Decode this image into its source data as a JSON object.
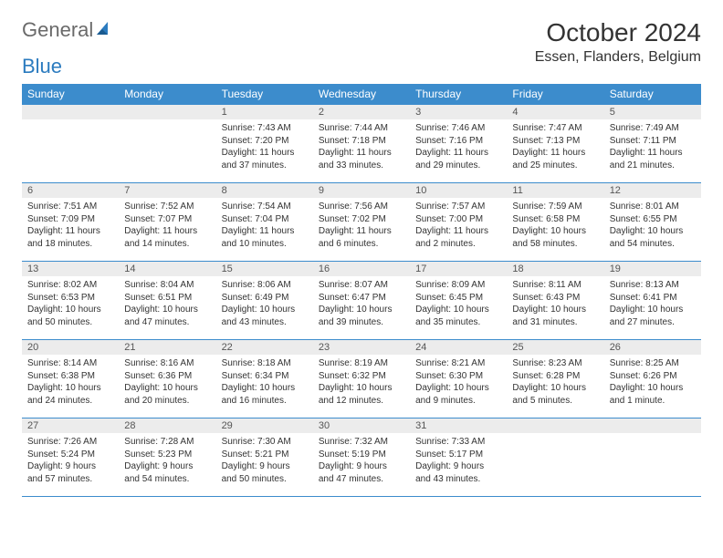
{
  "logo": {
    "text1": "General",
    "text2": "Blue"
  },
  "header": {
    "month_title": "October 2024",
    "location": "Essen, Flanders, Belgium"
  },
  "colors": {
    "header_bg": "#3c8ccc",
    "daynum_bg": "#ececec",
    "border": "#3c8ccc",
    "logo_gray": "#6a6a6a",
    "logo_blue": "#2b7bbf"
  },
  "day_names": [
    "Sunday",
    "Monday",
    "Tuesday",
    "Wednesday",
    "Thursday",
    "Friday",
    "Saturday"
  ],
  "weeks": [
    [
      {
        "empty": true
      },
      {
        "empty": true
      },
      {
        "num": "1",
        "sunrise": "Sunrise: 7:43 AM",
        "sunset": "Sunset: 7:20 PM",
        "daylight": "Daylight: 11 hours and 37 minutes."
      },
      {
        "num": "2",
        "sunrise": "Sunrise: 7:44 AM",
        "sunset": "Sunset: 7:18 PM",
        "daylight": "Daylight: 11 hours and 33 minutes."
      },
      {
        "num": "3",
        "sunrise": "Sunrise: 7:46 AM",
        "sunset": "Sunset: 7:16 PM",
        "daylight": "Daylight: 11 hours and 29 minutes."
      },
      {
        "num": "4",
        "sunrise": "Sunrise: 7:47 AM",
        "sunset": "Sunset: 7:13 PM",
        "daylight": "Daylight: 11 hours and 25 minutes."
      },
      {
        "num": "5",
        "sunrise": "Sunrise: 7:49 AM",
        "sunset": "Sunset: 7:11 PM",
        "daylight": "Daylight: 11 hours and 21 minutes."
      }
    ],
    [
      {
        "num": "6",
        "sunrise": "Sunrise: 7:51 AM",
        "sunset": "Sunset: 7:09 PM",
        "daylight": "Daylight: 11 hours and 18 minutes."
      },
      {
        "num": "7",
        "sunrise": "Sunrise: 7:52 AM",
        "sunset": "Sunset: 7:07 PM",
        "daylight": "Daylight: 11 hours and 14 minutes."
      },
      {
        "num": "8",
        "sunrise": "Sunrise: 7:54 AM",
        "sunset": "Sunset: 7:04 PM",
        "daylight": "Daylight: 11 hours and 10 minutes."
      },
      {
        "num": "9",
        "sunrise": "Sunrise: 7:56 AM",
        "sunset": "Sunset: 7:02 PM",
        "daylight": "Daylight: 11 hours and 6 minutes."
      },
      {
        "num": "10",
        "sunrise": "Sunrise: 7:57 AM",
        "sunset": "Sunset: 7:00 PM",
        "daylight": "Daylight: 11 hours and 2 minutes."
      },
      {
        "num": "11",
        "sunrise": "Sunrise: 7:59 AM",
        "sunset": "Sunset: 6:58 PM",
        "daylight": "Daylight: 10 hours and 58 minutes."
      },
      {
        "num": "12",
        "sunrise": "Sunrise: 8:01 AM",
        "sunset": "Sunset: 6:55 PM",
        "daylight": "Daylight: 10 hours and 54 minutes."
      }
    ],
    [
      {
        "num": "13",
        "sunrise": "Sunrise: 8:02 AM",
        "sunset": "Sunset: 6:53 PM",
        "daylight": "Daylight: 10 hours and 50 minutes."
      },
      {
        "num": "14",
        "sunrise": "Sunrise: 8:04 AM",
        "sunset": "Sunset: 6:51 PM",
        "daylight": "Daylight: 10 hours and 47 minutes."
      },
      {
        "num": "15",
        "sunrise": "Sunrise: 8:06 AM",
        "sunset": "Sunset: 6:49 PM",
        "daylight": "Daylight: 10 hours and 43 minutes."
      },
      {
        "num": "16",
        "sunrise": "Sunrise: 8:07 AM",
        "sunset": "Sunset: 6:47 PM",
        "daylight": "Daylight: 10 hours and 39 minutes."
      },
      {
        "num": "17",
        "sunrise": "Sunrise: 8:09 AM",
        "sunset": "Sunset: 6:45 PM",
        "daylight": "Daylight: 10 hours and 35 minutes."
      },
      {
        "num": "18",
        "sunrise": "Sunrise: 8:11 AM",
        "sunset": "Sunset: 6:43 PM",
        "daylight": "Daylight: 10 hours and 31 minutes."
      },
      {
        "num": "19",
        "sunrise": "Sunrise: 8:13 AM",
        "sunset": "Sunset: 6:41 PM",
        "daylight": "Daylight: 10 hours and 27 minutes."
      }
    ],
    [
      {
        "num": "20",
        "sunrise": "Sunrise: 8:14 AM",
        "sunset": "Sunset: 6:38 PM",
        "daylight": "Daylight: 10 hours and 24 minutes."
      },
      {
        "num": "21",
        "sunrise": "Sunrise: 8:16 AM",
        "sunset": "Sunset: 6:36 PM",
        "daylight": "Daylight: 10 hours and 20 minutes."
      },
      {
        "num": "22",
        "sunrise": "Sunrise: 8:18 AM",
        "sunset": "Sunset: 6:34 PM",
        "daylight": "Daylight: 10 hours and 16 minutes."
      },
      {
        "num": "23",
        "sunrise": "Sunrise: 8:19 AM",
        "sunset": "Sunset: 6:32 PM",
        "daylight": "Daylight: 10 hours and 12 minutes."
      },
      {
        "num": "24",
        "sunrise": "Sunrise: 8:21 AM",
        "sunset": "Sunset: 6:30 PM",
        "daylight": "Daylight: 10 hours and 9 minutes."
      },
      {
        "num": "25",
        "sunrise": "Sunrise: 8:23 AM",
        "sunset": "Sunset: 6:28 PM",
        "daylight": "Daylight: 10 hours and 5 minutes."
      },
      {
        "num": "26",
        "sunrise": "Sunrise: 8:25 AM",
        "sunset": "Sunset: 6:26 PM",
        "daylight": "Daylight: 10 hours and 1 minute."
      }
    ],
    [
      {
        "num": "27",
        "sunrise": "Sunrise: 7:26 AM",
        "sunset": "Sunset: 5:24 PM",
        "daylight": "Daylight: 9 hours and 57 minutes."
      },
      {
        "num": "28",
        "sunrise": "Sunrise: 7:28 AM",
        "sunset": "Sunset: 5:23 PM",
        "daylight": "Daylight: 9 hours and 54 minutes."
      },
      {
        "num": "29",
        "sunrise": "Sunrise: 7:30 AM",
        "sunset": "Sunset: 5:21 PM",
        "daylight": "Daylight: 9 hours and 50 minutes."
      },
      {
        "num": "30",
        "sunrise": "Sunrise: 7:32 AM",
        "sunset": "Sunset: 5:19 PM",
        "daylight": "Daylight: 9 hours and 47 minutes."
      },
      {
        "num": "31",
        "sunrise": "Sunrise: 7:33 AM",
        "sunset": "Sunset: 5:17 PM",
        "daylight": "Daylight: 9 hours and 43 minutes."
      },
      {
        "empty": true
      },
      {
        "empty": true
      }
    ]
  ]
}
